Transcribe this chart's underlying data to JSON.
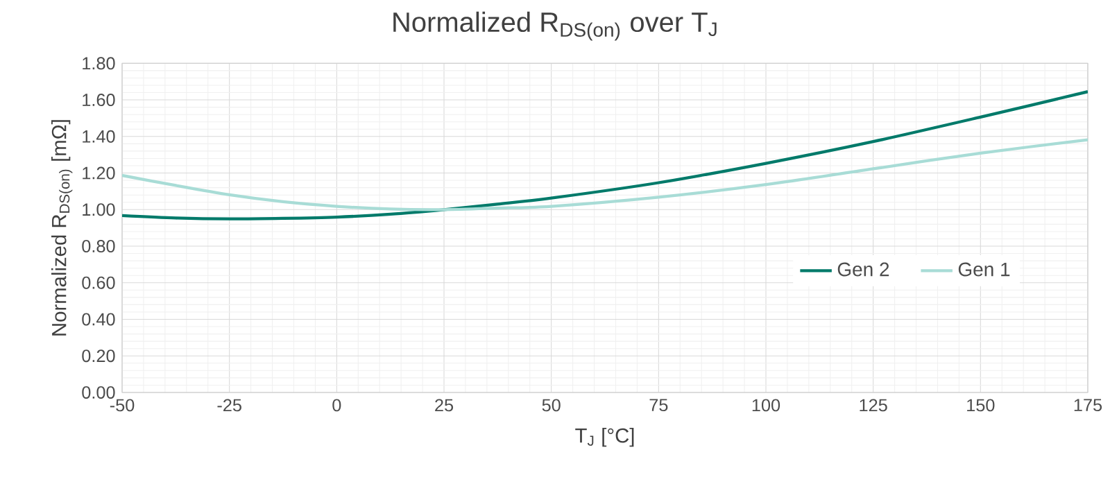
{
  "chart_data": {
    "type": "line",
    "title": "Normalized R$_{DS(on)}$ over T$_{J}$",
    "xlabel": "T$_{J}$ [°C]",
    "ylabel": "Normalized R$_{DS(on)}$ [mΩ]",
    "series": [
      {
        "name": "Gen 2",
        "color": "#007a6a",
        "x": [
          -50,
          -37.5,
          -25,
          -12.5,
          0,
          12.5,
          25,
          37.5,
          50,
          75,
          100,
          125,
          150,
          175
        ],
        "values": [
          0.967,
          0.954,
          0.949,
          0.952,
          0.959,
          0.975,
          1.0,
          1.03,
          1.063,
          1.147,
          1.253,
          1.372,
          1.506,
          1.645
        ]
      },
      {
        "name": "Gen 1",
        "color": "#a8dcd6",
        "x": [
          -50,
          -37.5,
          -25,
          -12.5,
          0,
          12.5,
          25,
          37.5,
          50,
          75,
          100,
          125,
          150,
          175
        ],
        "values": [
          1.187,
          1.132,
          1.081,
          1.043,
          1.018,
          1.003,
          1.0,
          1.008,
          1.018,
          1.068,
          1.137,
          1.223,
          1.309,
          1.382
        ]
      }
    ],
    "xlim": [
      -50,
      175
    ],
    "xticks": [
      -50,
      -25,
      0,
      25,
      50,
      75,
      100,
      125,
      150,
      175
    ],
    "ylim": [
      0,
      1.8
    ],
    "yticks": [
      {
        "value": 0,
        "label": "0.00"
      },
      {
        "value": 0.2,
        "label": "0.20"
      },
      {
        "value": 0.4,
        "label": "0.40"
      },
      {
        "value": 0.6,
        "label": "0.60"
      },
      {
        "value": 0.8,
        "label": "0.80"
      },
      {
        "value": 1.0,
        "label": "1.00"
      },
      {
        "value": 1.2,
        "label": "1.20"
      },
      {
        "value": 1.4,
        "label": "1.40"
      },
      {
        "value": 1.6,
        "label": "1.60"
      },
      {
        "value": 1.8,
        "label": "1.80"
      }
    ],
    "grid": true,
    "legend": "right",
    "marker": "none",
    "line_style": "solid"
  }
}
